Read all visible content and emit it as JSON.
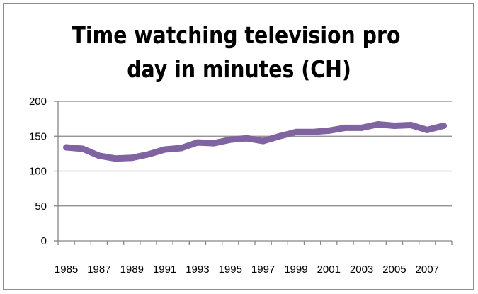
{
  "chart_data": {
    "type": "line",
    "title_lines": [
      "Time watching television pro",
      "day in minutes  (CH)"
    ],
    "x": [
      1985,
      1986,
      1987,
      1988,
      1989,
      1990,
      1991,
      1992,
      1993,
      1994,
      1995,
      1996,
      1997,
      1998,
      1999,
      2000,
      2001,
      2002,
      2003,
      2004,
      2005,
      2006,
      2007,
      2008
    ],
    "series": [
      {
        "values": [
          134,
          132,
          122,
          118,
          119,
          124,
          131,
          133,
          141,
          140,
          145,
          147,
          143,
          150,
          156,
          156,
          158,
          162,
          162,
          167,
          165,
          166,
          159,
          165
        ],
        "color": "#8064a2"
      }
    ],
    "ylim": [
      0,
      200
    ],
    "yticks": [
      "0",
      "50",
      "100",
      "150",
      "200"
    ],
    "xtick_labels": [
      "1985",
      "1987",
      "1989",
      "1991",
      "1993",
      "1995",
      "1997",
      "1999",
      "2001",
      "2003",
      "2005",
      "2007"
    ],
    "grid": true,
    "legend": "none"
  }
}
